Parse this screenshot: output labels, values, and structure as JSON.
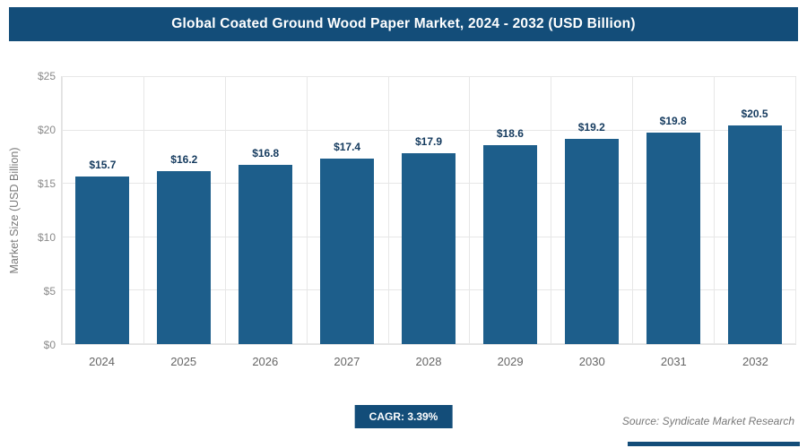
{
  "banner": {
    "title": "Global Coated Ground Wood Paper Market, 2024 - 2032 (USD Billion)"
  },
  "chart_data": {
    "type": "bar",
    "title": "Global Coated Ground Wood Paper Market, 2024 - 2032 (USD Billion)",
    "categories": [
      "2024",
      "2025",
      "2026",
      "2027",
      "2028",
      "2029",
      "2030",
      "2031",
      "2032"
    ],
    "values": [
      15.7,
      16.2,
      16.8,
      17.4,
      17.9,
      18.6,
      19.2,
      19.8,
      20.5
    ],
    "value_labels": [
      "$15.7",
      "$16.2",
      "$16.8",
      "$17.4",
      "$17.9",
      "$18.6",
      "$19.2",
      "$19.8",
      "$20.5"
    ],
    "xlabel": "",
    "ylabel": "Market Size (USD Billion)",
    "ylim": [
      0,
      25
    ],
    "yticks": [
      0,
      5,
      10,
      15,
      20,
      25
    ],
    "ytick_labels": [
      "$0",
      "$5",
      "$10",
      "$15",
      "$20",
      "$25"
    ],
    "grid": true,
    "legend": false
  },
  "footer": {
    "cagr_label": "CAGR: 3.39%",
    "source": "Source: Syndicate Market Research"
  },
  "colors": {
    "banner": "#134d79",
    "bar": "#1d5e8b",
    "bar_label_text": "#143a5e",
    "axis_text": "#8a8a8a",
    "gridline": "#e7e7e7"
  }
}
